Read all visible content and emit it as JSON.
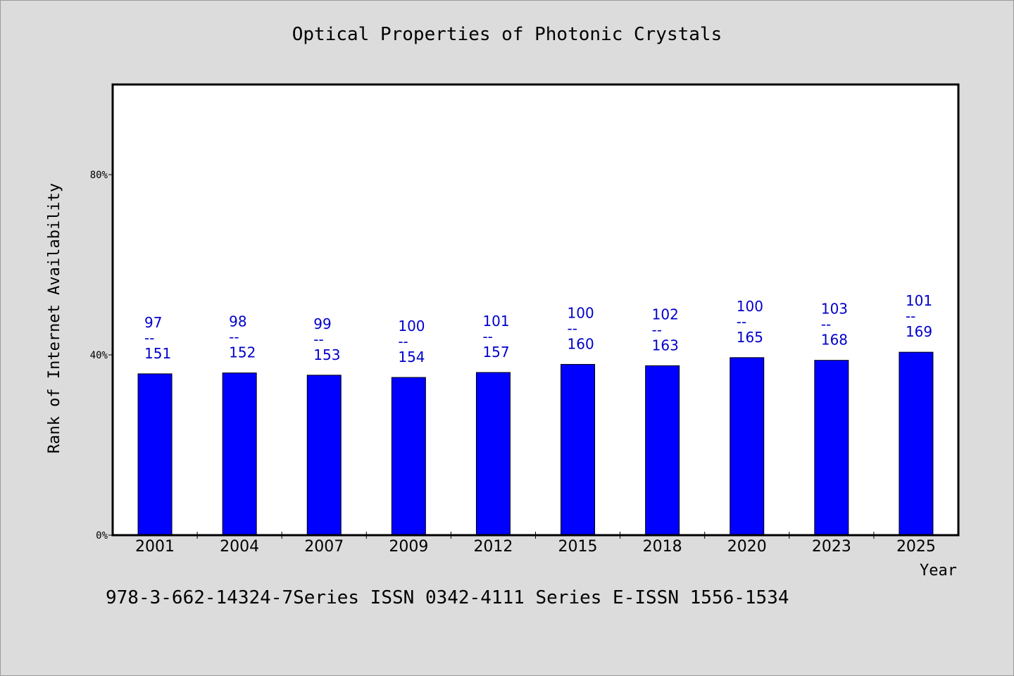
{
  "title": "Optical Properties of Photonic Crystals",
  "footer": "978-3-662-14324-7Series ISSN 0342-4111 Series E-ISSN 1556-1534",
  "chart_data": {
    "type": "bar",
    "title": "Optical Properties of Photonic Crystals",
    "xlabel": "Year",
    "ylabel": "Rank of Internet Availability",
    "categories": [
      "2001",
      "2004",
      "2007",
      "2009",
      "2012",
      "2015",
      "2018",
      "2020",
      "2023",
      "2025"
    ],
    "series": [
      {
        "values": [
          35.8,
          36.0,
          35.5,
          35.0,
          36.1,
          37.9,
          37.6,
          39.4,
          38.8,
          40.6
        ],
        "labels": [
          [
            "97",
            "--",
            "151"
          ],
          [
            "98",
            "--",
            "152"
          ],
          [
            "99",
            "--",
            "153"
          ],
          [
            "100",
            "--",
            "154"
          ],
          [
            "101",
            "--",
            "157"
          ],
          [
            "100",
            "--",
            "160"
          ],
          [
            "102",
            "--",
            "163"
          ],
          [
            "100",
            "--",
            "165"
          ],
          [
            "103",
            "--",
            "168"
          ],
          [
            "101",
            "--",
            "169"
          ]
        ]
      }
    ],
    "yticks": [
      0,
      40,
      80
    ],
    "ytick_labels": [
      "0%",
      "40%",
      "80%"
    ],
    "ylim": [
      0,
      100
    ],
    "bar_color": "#0000ff",
    "label_color": "#0000cc",
    "plot_background": "#ffffff",
    "page_background": "#dcdcdc",
    "grid": false,
    "legend": "none"
  }
}
